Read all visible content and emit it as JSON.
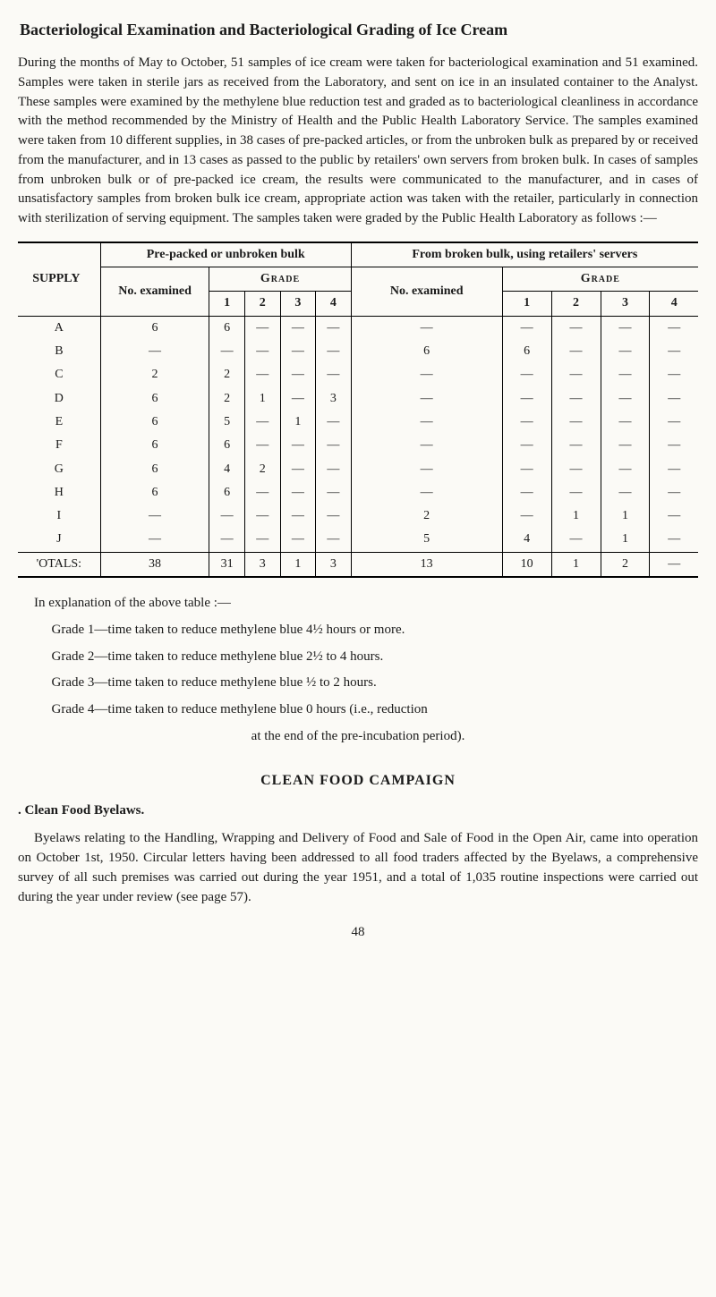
{
  "title": "Bacteriological Examination and Bacteriological Grading of Ice Cream",
  "para1": "During the months of May to October, 51 samples of ice cream were taken for bacteriological examination and 51 examined. Samples were taken in sterile jars as received from the Laboratory, and sent on ice in an insulated container to the Analyst. These samples were examined by the methylene blue reduction test and graded as to bacteriological cleanliness in accordance with the method recommended by the Ministry of Health and the Public Health Laboratory Service. The samples examined were taken from 10 different supplies, in 38 cases of pre-packed articles, or from the unbroken bulk as prepared by or received from the manufacturer, and in 13 cases as passed to the public by retailers' own servers from broken bulk. In cases of samples from unbroken bulk or of pre-packed ice cream, the results were communicated to the manufacturer, and in cases of unsatisfactory samples from broken bulk ice cream, appropriate action was taken with the retailer, particularly in connection with sterilization of serving equipment. The samples taken were graded by the Public Health Laboratory as follows :—",
  "table": {
    "left_header_top": "Pre-packed or unbroken bulk",
    "right_header_top": "From broken bulk, using retailers' servers",
    "supply_label": "SUPPLY",
    "no_exam": "No. examined",
    "grade_label": "Grade",
    "cols": [
      "1",
      "2",
      "3",
      "4"
    ],
    "rows": [
      {
        "s": "A",
        "l": [
          "6",
          "6",
          "—",
          "—",
          "—"
        ],
        "r": [
          "—",
          "—",
          "—",
          "—",
          "—"
        ]
      },
      {
        "s": "B",
        "l": [
          "—",
          "—",
          "—",
          "—",
          "—"
        ],
        "r": [
          "6",
          "6",
          "—",
          "—",
          "—"
        ]
      },
      {
        "s": "C",
        "l": [
          "2",
          "2",
          "—",
          "—",
          "—"
        ],
        "r": [
          "—",
          "—",
          "—",
          "—",
          "—"
        ]
      },
      {
        "s": "D",
        "l": [
          "6",
          "2",
          "1",
          "—",
          "3"
        ],
        "r": [
          "—",
          "—",
          "—",
          "—",
          "—"
        ]
      },
      {
        "s": "E",
        "l": [
          "6",
          "5",
          "—",
          "1",
          "—"
        ],
        "r": [
          "—",
          "—",
          "—",
          "—",
          "—"
        ]
      },
      {
        "s": "F",
        "l": [
          "6",
          "6",
          "—",
          "—",
          "—"
        ],
        "r": [
          "—",
          "—",
          "—",
          "—",
          "—"
        ]
      },
      {
        "s": "G",
        "l": [
          "6",
          "4",
          "2",
          "—",
          "—"
        ],
        "r": [
          "—",
          "—",
          "—",
          "—",
          "—"
        ]
      },
      {
        "s": "H",
        "l": [
          "6",
          "6",
          "—",
          "—",
          "—"
        ],
        "r": [
          "—",
          "—",
          "—",
          "—",
          "—"
        ]
      },
      {
        "s": "I",
        "l": [
          "—",
          "—",
          "—",
          "—",
          "—"
        ],
        "r": [
          "2",
          "—",
          "1",
          "1",
          "—"
        ]
      },
      {
        "s": "J",
        "l": [
          "—",
          "—",
          "—",
          "—",
          "—"
        ],
        "r": [
          "5",
          "4",
          "—",
          "1",
          "—"
        ]
      }
    ],
    "totals_label": "'OTALS:",
    "totals": {
      "l": [
        "38",
        "31",
        "3",
        "1",
        "3"
      ],
      "r": [
        "13",
        "10",
        "1",
        "2",
        "—"
      ]
    }
  },
  "explain_intro": "In explanation of the above table :—",
  "grades": [
    "Grade 1—time taken to reduce methylene blue 4½ hours or more.",
    "Grade 2—time taken to reduce methylene blue 2½ to 4 hours.",
    "Grade 3—time taken to reduce methylene blue ½ to 2 hours.",
    "Grade 4—time taken to reduce methylene blue 0 hours (i.e., reduction",
    "at the end of the pre-incubation period)."
  ],
  "section2": "CLEAN FOOD CAMPAIGN",
  "byelaws_heading": ". Clean Food Byelaws.",
  "para2": "Byelaws relating to the Handling, Wrapping and Delivery of Food and Sale of Food in the Open Air, came into operation on October 1st, 1950. Circular letters having been addressed to all food traders affected by the Byelaws, a comprehensive survey of all such premises was carried out during the year 1951, and a total of 1,035 routine inspections were carried out during the year under review (see page 57).",
  "page_number": "48"
}
